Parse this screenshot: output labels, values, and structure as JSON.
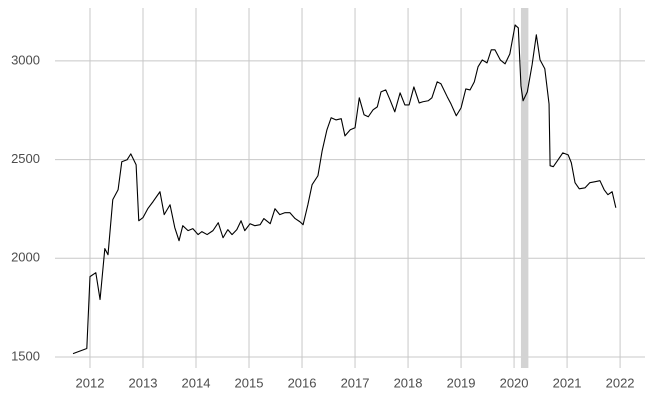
{
  "chart_data": {
    "type": "line",
    "x": [
      2011.68,
      2011.94,
      2012.0,
      2012.11,
      2012.19,
      2012.28,
      2012.34,
      2012.43,
      2012.53,
      2012.6,
      2012.7,
      2012.77,
      2012.87,
      2012.92,
      2013.0,
      2013.09,
      2013.19,
      2013.32,
      2013.4,
      2013.51,
      2013.6,
      2013.68,
      2013.75,
      2013.85,
      2013.94,
      2014.04,
      2014.11,
      2014.21,
      2014.32,
      2014.42,
      2014.51,
      2014.6,
      2014.68,
      2014.77,
      2014.85,
      2014.92,
      2015.02,
      2015.11,
      2015.21,
      2015.28,
      2015.4,
      2015.49,
      2015.58,
      2015.68,
      2015.77,
      2015.87,
      2015.96,
      2016.02,
      2016.11,
      2016.19,
      2016.3,
      2016.38,
      2016.47,
      2016.55,
      2016.64,
      2016.74,
      2016.81,
      2016.91,
      2017.0,
      2017.08,
      2017.17,
      2017.25,
      2017.34,
      2017.42,
      2017.49,
      2017.58,
      2017.66,
      2017.75,
      2017.85,
      2017.94,
      2018.02,
      2018.11,
      2018.21,
      2018.28,
      2018.38,
      2018.45,
      2018.55,
      2018.62,
      2018.74,
      2018.81,
      2018.91,
      2019.0,
      2019.09,
      2019.17,
      2019.25,
      2019.32,
      2019.4,
      2019.49,
      2019.57,
      2019.64,
      2019.74,
      2019.83,
      2019.92,
      2020.02,
      2020.08,
      2020.13,
      2020.17,
      2020.25,
      2020.34,
      2020.42,
      2020.49,
      2020.58,
      2020.66,
      2020.68,
      2020.74,
      2020.83,
      2020.92,
      2021.02,
      2021.08,
      2021.15,
      2021.23,
      2021.34,
      2021.43,
      2021.53,
      2021.62,
      2021.7,
      2021.77,
      2021.85,
      2021.92
    ],
    "series": [
      {
        "color": "#000000",
        "values": [
          1517,
          1543,
          1907,
          1927,
          1791,
          2049,
          2018,
          2297,
          2347,
          2489,
          2499,
          2529,
          2474,
          2190,
          2206,
          2251,
          2287,
          2337,
          2221,
          2271,
          2155,
          2089,
          2165,
          2140,
          2150,
          2120,
          2135,
          2120,
          2140,
          2180,
          2104,
          2145,
          2120,
          2145,
          2190,
          2140,
          2175,
          2165,
          2170,
          2201,
          2175,
          2251,
          2221,
          2231,
          2231,
          2201,
          2185,
          2170,
          2271,
          2373,
          2418,
          2545,
          2651,
          2712,
          2701,
          2707,
          2620,
          2651,
          2661,
          2813,
          2727,
          2717,
          2752,
          2767,
          2843,
          2853,
          2803,
          2742,
          2838,
          2777,
          2777,
          2868,
          2787,
          2793,
          2798,
          2813,
          2894,
          2884,
          2818,
          2782,
          2722,
          2762,
          2858,
          2853,
          2894,
          2970,
          3005,
          2990,
          3056,
          3056,
          3005,
          2985,
          3035,
          3182,
          3167,
          2873,
          2798,
          2843,
          2980,
          3132,
          3005,
          2960,
          2782,
          2469,
          2464,
          2499,
          2534,
          2524,
          2484,
          2383,
          2352,
          2357,
          2383,
          2388,
          2393,
          2347,
          2322,
          2337,
          2256
        ]
      }
    ],
    "shade": {
      "x": [
        2020.13,
        2020.27
      ],
      "color": "#d3d3d3"
    },
    "xlim": [
      2011.34,
      2022.47
    ],
    "xticks": [
      2012,
      2013,
      2014,
      2015,
      2016,
      2017,
      2018,
      2019,
      2020,
      2021,
      2022
    ],
    "ylim": [
      1444,
      3268
    ],
    "yticks": [
      1500,
      2000,
      2500,
      3000
    ],
    "grid": true
  }
}
